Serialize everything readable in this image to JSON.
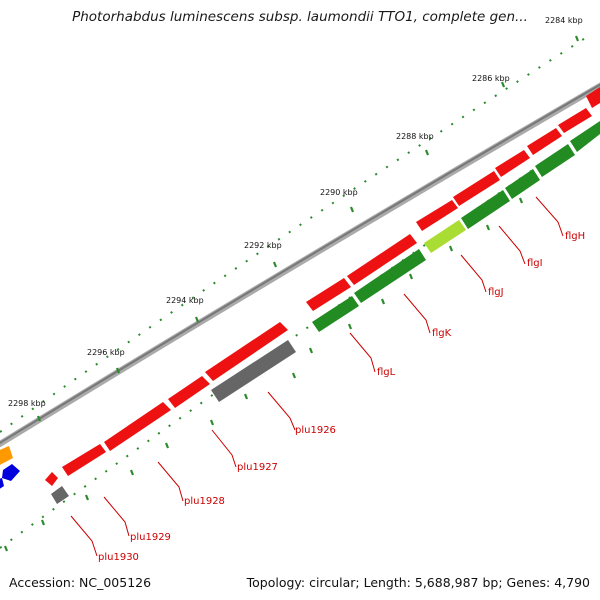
{
  "title": "Photorhabdus luminescens subsp. laumondii TTO1, complete gen...",
  "footer": {
    "accession": "Accession: NC_005126",
    "summary": "Topology: circular; Length: 5,688,987 bp; Genes: 4,790"
  },
  "ticks": [
    {
      "kbp": 2284,
      "label": "2284 kbp"
    },
    {
      "kbp": 2286,
      "label": "2286 kbp"
    },
    {
      "kbp": 2288,
      "label": "2288 kbp"
    },
    {
      "kbp": 2290,
      "label": "2290 kbp"
    },
    {
      "kbp": 2292,
      "label": "2292 kbp"
    },
    {
      "kbp": 2294,
      "label": "2294 kbp"
    },
    {
      "kbp": 2296,
      "label": "2296 kbp"
    },
    {
      "kbp": 2298,
      "label": "2298 kbp"
    }
  ],
  "gene_labels": [
    {
      "name": "flgH"
    },
    {
      "name": "flgI"
    },
    {
      "name": "flgJ"
    },
    {
      "name": "flgK"
    },
    {
      "name": "flgL"
    },
    {
      "name": "plu1926"
    },
    {
      "name": "plu1927"
    },
    {
      "name": "plu1928"
    },
    {
      "name": "plu1929"
    },
    {
      "name": "plu1930"
    }
  ],
  "colors": {
    "cds_forward": "#ee1111",
    "cds_reverse": "#228b22",
    "highlight": "#aadd33",
    "gray_feature": "#666666",
    "orange_feature": "#ff9900",
    "blue_feature": "#0000dd",
    "backbone": "#888888",
    "label_text": "#cc0000"
  }
}
